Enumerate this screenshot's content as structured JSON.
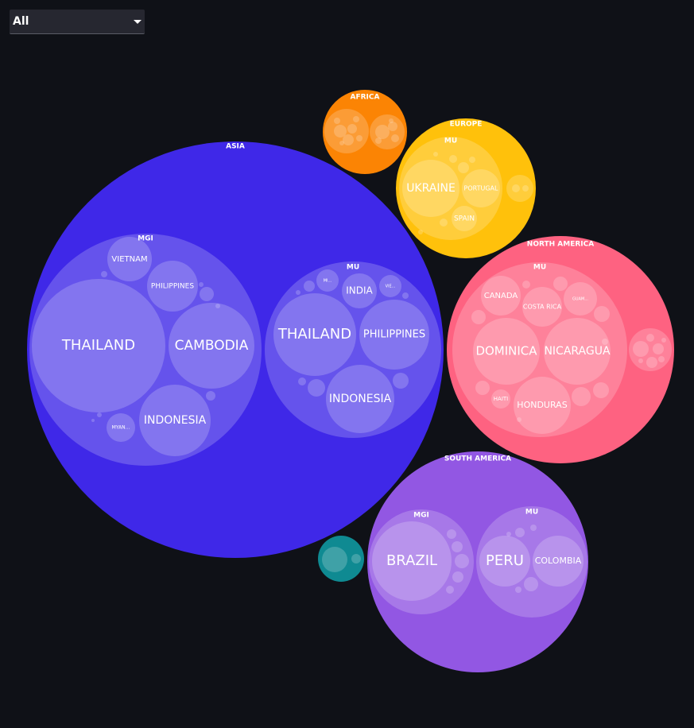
{
  "filter": {
    "selected": "All"
  },
  "chart_data": {
    "type": "circle-packing",
    "title": "",
    "colors": {
      "Asia": "#3f28e8",
      "Africa": "#fb8404",
      "Europe": "#ffc10b",
      "North America": "#fe6281",
      "South America": "#9257e3",
      "Other": "#0f8a92"
    },
    "groups": [
      {
        "name": "ASIA",
        "key": "Asia",
        "children": [
          {
            "name": "MGI",
            "children": [
              {
                "name": "THAILAND"
              },
              {
                "name": "CAMBODIA"
              },
              {
                "name": "INDONESIA"
              },
              {
                "name": "VIETNAM"
              },
              {
                "name": "PHILIPPINES"
              },
              {
                "name": "MYAN..."
              }
            ]
          },
          {
            "name": "MU",
            "children": [
              {
                "name": "THAILAND"
              },
              {
                "name": "PHILIPPINES"
              },
              {
                "name": "INDONESIA"
              },
              {
                "name": "INDIA"
              },
              {
                "name": "MI..."
              },
              {
                "name": "VIE..."
              }
            ]
          }
        ]
      },
      {
        "name": "AFRICA",
        "key": "Africa",
        "children": []
      },
      {
        "name": "EUROPE",
        "key": "Europe",
        "children": [
          {
            "name": "MU",
            "children": [
              {
                "name": "UKRAINE"
              },
              {
                "name": "PORTUGAL"
              },
              {
                "name": "SPAIN"
              }
            ]
          }
        ]
      },
      {
        "name": "NORTH AMERICA",
        "key": "North America",
        "children": [
          {
            "name": "MU",
            "children": [
              {
                "name": "DOMINICA"
              },
              {
                "name": "NICARAGUA"
              },
              {
                "name": "HONDURAS"
              },
              {
                "name": "CANADA"
              },
              {
                "name": "COSTA RICA"
              },
              {
                "name": "HAITI"
              },
              {
                "name": "GUAM..."
              }
            ]
          }
        ]
      },
      {
        "name": "SOUTH AMERICA",
        "key": "South America",
        "children": [
          {
            "name": "MGI",
            "children": [
              {
                "name": "BRAZIL"
              }
            ]
          },
          {
            "name": "MU",
            "children": [
              {
                "name": "PERU"
              },
              {
                "name": "COLOMBIA"
              }
            ]
          }
        ]
      }
    ]
  }
}
